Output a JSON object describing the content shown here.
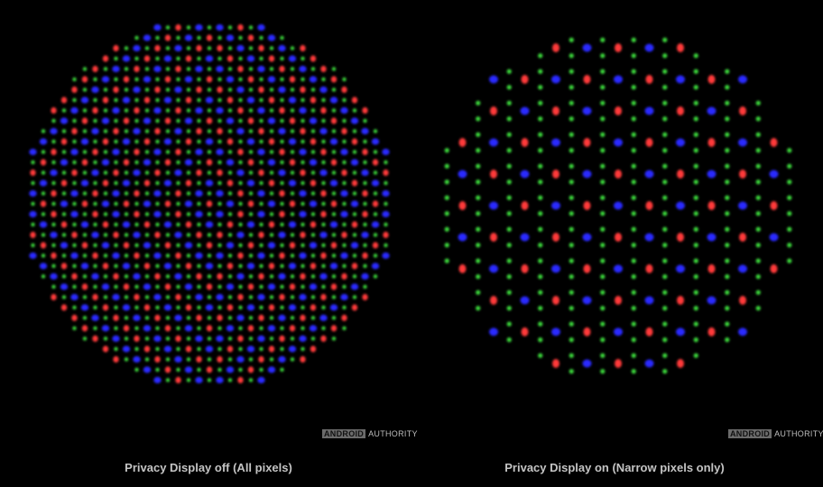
{
  "panels": [
    {
      "caption": "Privacy Display off (All pixels)",
      "watermark": {
        "brand": "ANDROID",
        "suffix": "AUTHORITY"
      }
    },
    {
      "caption": "Privacy Display on (Narrow pixels only)",
      "watermark": {
        "brand": "ANDROID",
        "suffix": "AUTHORITY"
      }
    }
  ],
  "colors": {
    "red": "#ff3a3a",
    "green": "#3ddc3d",
    "blue": "#2a2aff",
    "background": "#000000",
    "caption": "#c4c4c4"
  }
}
